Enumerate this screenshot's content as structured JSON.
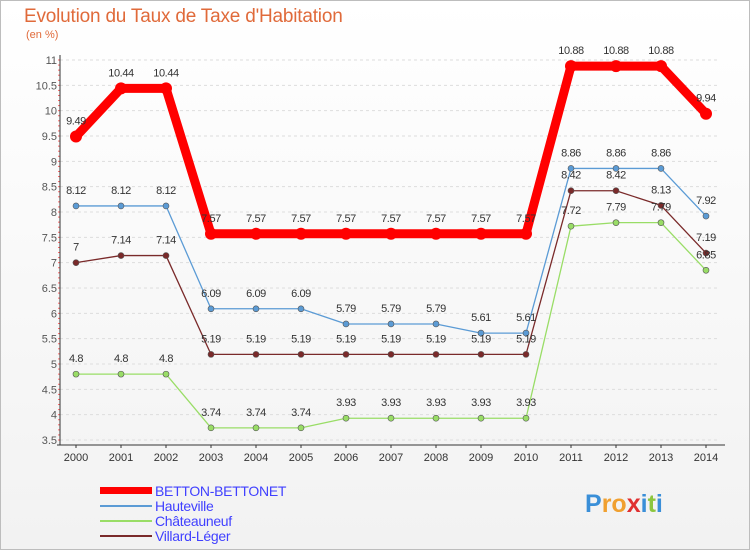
{
  "chart_data": {
    "type": "line",
    "title": "Evolution du Taux de Taxe d'Habitation",
    "subtitle": "(en %)",
    "x": [
      "2000",
      "2001",
      "2002",
      "2003",
      "2004",
      "2005",
      "2006",
      "2007",
      "2008",
      "2009",
      "2010",
      "2011",
      "2012",
      "2013",
      "2014"
    ],
    "ylim": [
      3.5,
      11
    ],
    "yticks": [
      "3.5",
      "4",
      "4.5",
      "5",
      "5.5",
      "6",
      "6.5",
      "7",
      "7.5",
      "8",
      "8.5",
      "9",
      "9.5",
      "10",
      "10.5",
      "11"
    ],
    "grid": "horizontal dashed",
    "legend_position": "bottom-left",
    "series": [
      {
        "name": "BETTON-BETTONET",
        "color": "#ff0000",
        "values": [
          9.49,
          10.44,
          10.44,
          7.57,
          7.57,
          7.57,
          7.57,
          7.57,
          7.57,
          7.57,
          7.57,
          10.88,
          10.88,
          10.88,
          9.94
        ],
        "labels": [
          "9.49",
          "10.44",
          "10.44",
          "7.57",
          "7.57",
          "7.57",
          "7.57",
          "7.57",
          "7.57",
          "7.57",
          "7.57",
          "10.88",
          "10.88",
          "10.88",
          "9.94"
        ]
      },
      {
        "name": "Hauteville",
        "color": "#5b9bd5",
        "values": [
          8.12,
          8.12,
          8.12,
          6.09,
          6.09,
          6.09,
          5.79,
          5.79,
          5.79,
          5.61,
          5.61,
          8.86,
          8.86,
          8.86,
          7.92
        ],
        "labels": [
          "8.12",
          "8.12",
          "8.12",
          "6.09",
          "6.09",
          "6.09",
          "5.79",
          "5.79",
          "5.79",
          "5.61",
          "5.61",
          "8.86",
          "8.86",
          "8.86",
          "7.92"
        ]
      },
      {
        "name": "Châteauneuf",
        "color": "#99dd66",
        "values": [
          4.8,
          4.8,
          4.8,
          3.74,
          3.74,
          3.74,
          3.93,
          3.93,
          3.93,
          3.93,
          3.93,
          7.72,
          7.79,
          7.79,
          6.85
        ],
        "labels": [
          "4.8",
          "4.8",
          "4.8",
          "3.74",
          "3.74",
          "3.74",
          "3.93",
          "3.93",
          "3.93",
          "3.93",
          "3.93",
          "7.72",
          "7.79",
          "7.79",
          "6.85"
        ]
      },
      {
        "name": "Villard-Léger",
        "color": "#7a2a2a",
        "values": [
          7,
          7.14,
          7.14,
          5.19,
          5.19,
          5.19,
          5.19,
          5.19,
          5.19,
          5.19,
          5.19,
          8.42,
          8.42,
          8.13,
          7.19
        ],
        "labels": [
          "7",
          "7.14",
          "7.14",
          "5.19",
          "5.19",
          "5.19",
          "5.19",
          "5.19",
          "5.19",
          "5.19",
          "5.19",
          "8.42",
          "8.42",
          "8.13",
          "7.19"
        ]
      }
    ]
  },
  "legend": [
    {
      "label": "BETTON-BETTONET",
      "color": "#ff0000"
    },
    {
      "label": "Hauteville",
      "color": "#5b9bd5"
    },
    {
      "label": "Châteauneuf",
      "color": "#99dd66"
    },
    {
      "label": "Villard-Léger",
      "color": "#7a2a2a"
    }
  ],
  "logo": {
    "text": "Proxiti",
    "letters": [
      {
        "ch": "P",
        "color": "#3a8fd8"
      },
      {
        "ch": "r",
        "color": "#f0a030"
      },
      {
        "ch": "o",
        "color": "#f0a030"
      },
      {
        "ch": "x",
        "color": "#e03030"
      },
      {
        "ch": "i",
        "color": "#3a8fd8"
      },
      {
        "ch": "t",
        "color": "#8cc63f"
      },
      {
        "ch": "i",
        "color": "#3a8fd8"
      }
    ]
  }
}
